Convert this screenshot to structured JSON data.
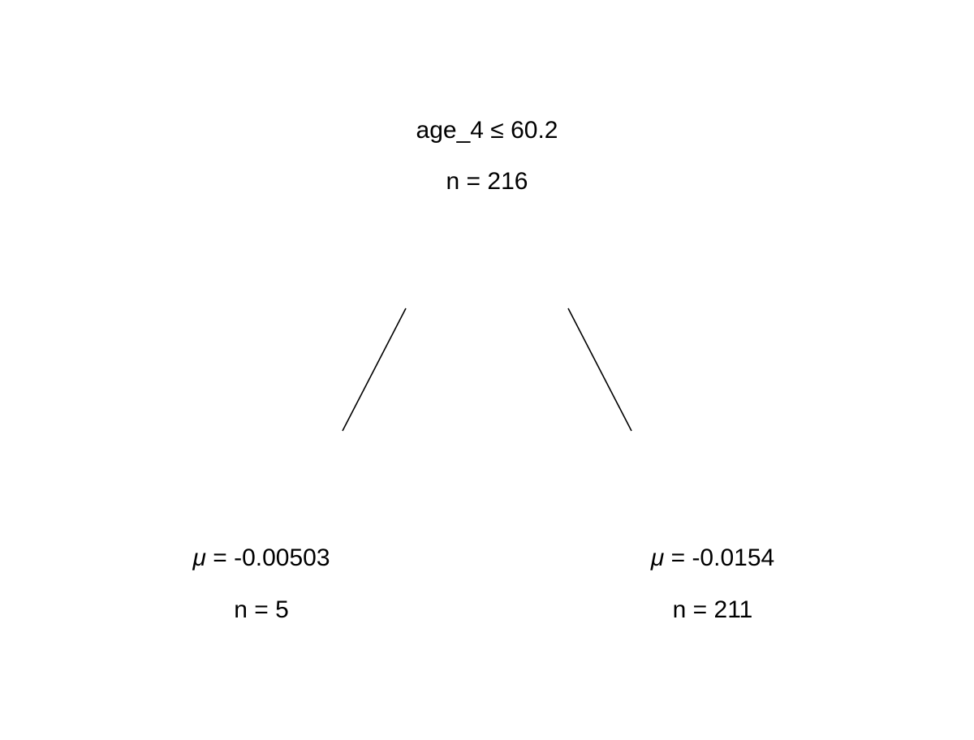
{
  "tree": {
    "root": {
      "split_label": "age_4 ≤ 60.2",
      "n_label": "n = 216"
    },
    "leaves": [
      {
        "mu_symbol": "μ",
        "mean_label": " = -0.00503",
        "n_label": "n = 5"
      },
      {
        "mu_symbol": "μ",
        "mean_label": " = -0.0154",
        "n_label": "n = 211"
      }
    ]
  }
}
